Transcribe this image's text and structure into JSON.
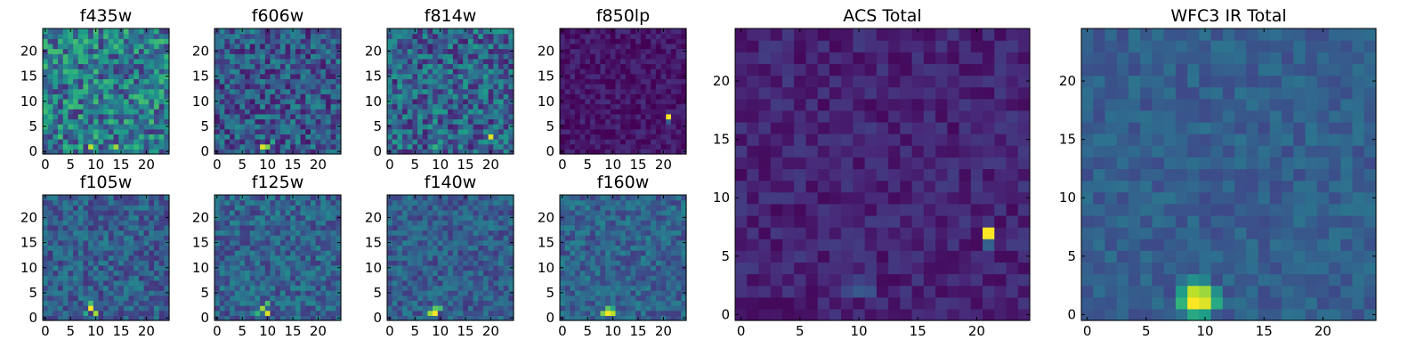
{
  "chart_data": [
    {
      "type": "heatmap",
      "title": "f435w",
      "grid_size": 25,
      "xlim": [
        -0.5,
        24.5
      ],
      "ylim": [
        -0.5,
        24.5
      ],
      "xticks": [
        0,
        5,
        10,
        15,
        20
      ],
      "yticks": [
        0,
        5,
        10,
        15,
        20
      ],
      "colormap": "viridis",
      "value_range": [
        0,
        1
      ],
      "hotspots": [
        [
          9,
          1,
          0.9
        ],
        [
          14,
          1,
          0.85
        ],
        [
          11,
          2,
          0.6
        ]
      ],
      "background": 0.42,
      "noise": 0.28,
      "seed": 11
    },
    {
      "type": "heatmap",
      "title": "f606w",
      "grid_size": 25,
      "xlim": [
        -0.5,
        24.5
      ],
      "ylim": [
        -0.5,
        24.5
      ],
      "xticks": [
        0,
        5,
        10,
        15,
        20
      ],
      "yticks": [
        0,
        5,
        10,
        15,
        20
      ],
      "colormap": "viridis",
      "value_range": [
        0,
        1
      ],
      "hotspots": [
        [
          9,
          1,
          0.95
        ],
        [
          10,
          1,
          0.8
        ],
        [
          11,
          2,
          0.6
        ]
      ],
      "background": 0.28,
      "noise": 0.22,
      "seed": 23
    },
    {
      "type": "heatmap",
      "title": "f814w",
      "grid_size": 25,
      "xlim": [
        -0.5,
        24.5
      ],
      "ylim": [
        -0.5,
        24.5
      ],
      "xticks": [
        0,
        5,
        10,
        15,
        20
      ],
      "yticks": [
        0,
        5,
        10,
        15,
        20
      ],
      "colormap": "viridis",
      "value_range": [
        0,
        1
      ],
      "hotspots": [
        [
          20,
          3,
          0.95
        ],
        [
          9,
          1,
          0.65
        ],
        [
          10,
          2,
          0.55
        ]
      ],
      "background": 0.32,
      "noise": 0.24,
      "seed": 37
    },
    {
      "type": "heatmap",
      "title": "f850lp",
      "grid_size": 25,
      "xlim": [
        -0.5,
        24.5
      ],
      "ylim": [
        -0.5,
        24.5
      ],
      "xticks": [
        0,
        5,
        10,
        15,
        20
      ],
      "yticks": [
        0,
        5,
        10,
        15,
        20
      ],
      "colormap": "viridis",
      "value_range": [
        0,
        1
      ],
      "hotspots": [
        [
          21,
          7,
          1.0
        ],
        [
          21,
          6,
          0.3
        ]
      ],
      "background": 0.06,
      "noise": 0.08,
      "seed": 41
    },
    {
      "type": "heatmap",
      "title": "f105w",
      "grid_size": 25,
      "xlim": [
        -0.5,
        24.5
      ],
      "ylim": [
        -0.5,
        24.5
      ],
      "xticks": [
        0,
        5,
        10,
        15,
        20
      ],
      "yticks": [
        0,
        5,
        10,
        15,
        20
      ],
      "colormap": "viridis",
      "value_range": [
        0,
        1
      ],
      "hotspots": [
        [
          9,
          2,
          1.0
        ],
        [
          10,
          1,
          0.85
        ],
        [
          9,
          3,
          0.7
        ],
        [
          8,
          1,
          0.6
        ]
      ],
      "background": 0.3,
      "noise": 0.16,
      "seed": 53
    },
    {
      "type": "heatmap",
      "title": "f125w",
      "grid_size": 25,
      "xlim": [
        -0.5,
        24.5
      ],
      "ylim": [
        -0.5,
        24.5
      ],
      "xticks": [
        0,
        5,
        10,
        15,
        20
      ],
      "yticks": [
        0,
        5,
        10,
        15,
        20
      ],
      "colormap": "viridis",
      "value_range": [
        0,
        1
      ],
      "hotspots": [
        [
          10,
          1,
          0.95
        ],
        [
          9,
          2,
          0.85
        ],
        [
          10,
          3,
          0.7
        ],
        [
          8,
          1,
          0.65
        ]
      ],
      "background": 0.32,
      "noise": 0.16,
      "seed": 67
    },
    {
      "type": "heatmap",
      "title": "f140w",
      "grid_size": 25,
      "xlim": [
        -0.5,
        24.5
      ],
      "ylim": [
        -0.5,
        24.5
      ],
      "xticks": [
        0,
        5,
        10,
        15,
        20
      ],
      "yticks": [
        0,
        5,
        10,
        15,
        20
      ],
      "colormap": "viridis",
      "value_range": [
        0,
        1
      ],
      "hotspots": [
        [
          9,
          1,
          1.0
        ],
        [
          8,
          1,
          0.85
        ],
        [
          10,
          2,
          0.7
        ],
        [
          9,
          2,
          0.75
        ]
      ],
      "background": 0.3,
      "noise": 0.14,
      "seed": 71
    },
    {
      "type": "heatmap",
      "title": "f160w",
      "grid_size": 25,
      "xlim": [
        -0.5,
        24.5
      ],
      "ylim": [
        -0.5,
        24.5
      ],
      "xticks": [
        0,
        5,
        10,
        15,
        20
      ],
      "yticks": [
        0,
        5,
        10,
        15,
        20
      ],
      "colormap": "viridis",
      "value_range": [
        0,
        1
      ],
      "hotspots": [
        [
          9,
          1,
          1.0
        ],
        [
          10,
          1,
          0.9
        ],
        [
          8,
          1,
          0.8
        ],
        [
          9,
          2,
          0.75
        ],
        [
          10,
          2,
          0.6
        ]
      ],
      "background": 0.32,
      "noise": 0.14,
      "seed": 83
    },
    {
      "type": "heatmap",
      "title": "ACS Total",
      "grid_size": 25,
      "xlim": [
        -0.5,
        24.5
      ],
      "ylim": [
        -0.5,
        24.5
      ],
      "xticks": [
        0,
        5,
        10,
        15,
        20
      ],
      "yticks": [
        0,
        5,
        10,
        15,
        20
      ],
      "colormap": "viridis",
      "value_range": [
        0,
        1
      ],
      "hotspots": [
        [
          21,
          7,
          1.0
        ],
        [
          21,
          6,
          0.3
        ],
        [
          10,
          2,
          0.28
        ],
        [
          11,
          2,
          0.26
        ],
        [
          9,
          2,
          0.22
        ],
        [
          10,
          3,
          0.2
        ]
      ],
      "background": 0.1,
      "noise": 0.08,
      "seed": 97
    },
    {
      "type": "heatmap",
      "title": "WFC3 IR Total",
      "grid_size": 25,
      "xlim": [
        -0.5,
        24.5
      ],
      "ylim": [
        -0.5,
        24.5
      ],
      "xticks": [
        0,
        5,
        10,
        15,
        20
      ],
      "yticks": [
        0,
        5,
        10,
        15,
        20
      ],
      "colormap": "viridis",
      "value_range": [
        0,
        1
      ],
      "hotspots": [
        [
          9,
          1,
          1.0
        ],
        [
          10,
          1,
          0.95
        ],
        [
          9,
          2,
          0.9
        ],
        [
          10,
          2,
          0.85
        ],
        [
          8,
          1,
          0.65
        ],
        [
          11,
          1,
          0.6
        ],
        [
          8,
          2,
          0.55
        ],
        [
          11,
          2,
          0.5
        ],
        [
          9,
          3,
          0.5
        ],
        [
          10,
          3,
          0.45
        ],
        [
          9,
          0,
          0.6
        ],
        [
          10,
          0,
          0.55
        ],
        [
          15,
          14,
          0.36
        ],
        [
          15,
          13,
          0.34
        ]
      ],
      "background": 0.3,
      "noise": 0.08,
      "seed": 109
    }
  ]
}
